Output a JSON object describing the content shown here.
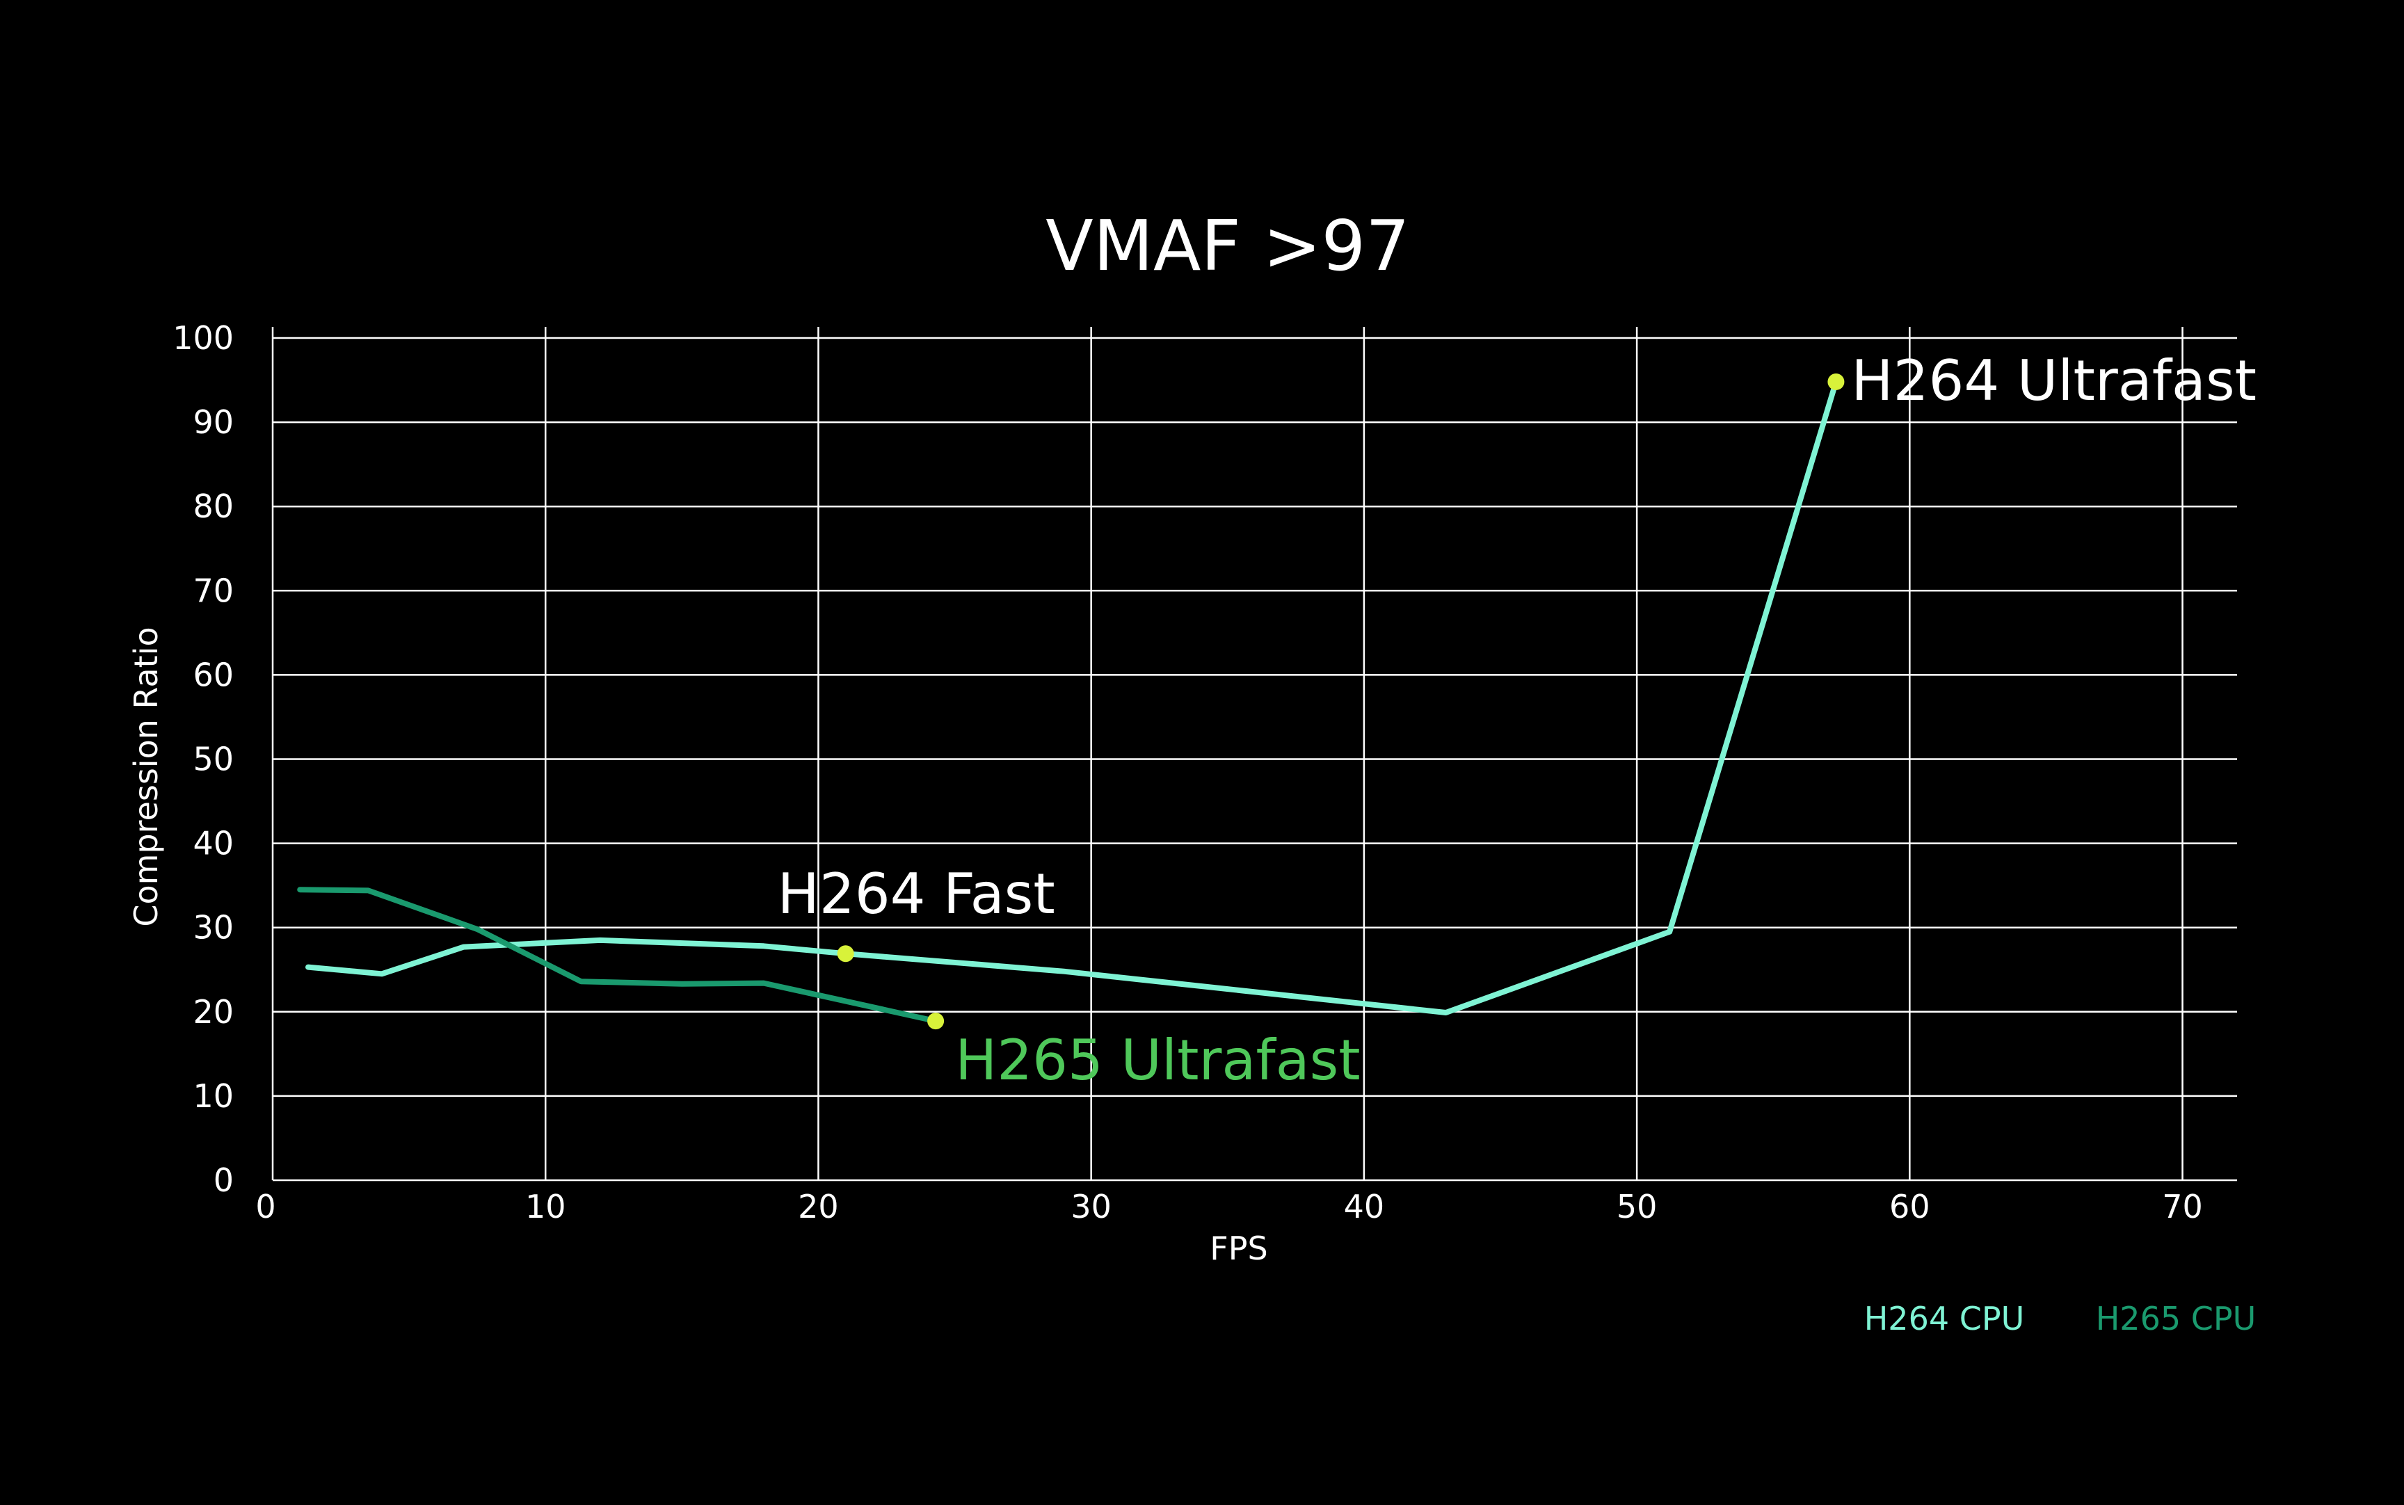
{
  "chart_data": {
    "type": "line",
    "title": "VMAF >97",
    "xlabel": "FPS",
    "ylabel": "Compression Ratio",
    "xlim": [
      0,
      72
    ],
    "ylim": [
      0,
      100
    ],
    "x_ticks": [
      0,
      10,
      20,
      30,
      40,
      50,
      60,
      70
    ],
    "y_ticks": [
      0,
      10,
      20,
      30,
      40,
      50,
      60,
      70,
      80,
      90,
      100
    ],
    "grid": true,
    "legend_position": "bottom-right",
    "series": [
      {
        "name": "H264 CPU",
        "color": "#7ff3d4",
        "x": [
          1.3,
          4,
          7,
          12,
          18,
          21,
          29,
          43,
          51.2,
          57.3
        ],
        "y": [
          25.3,
          24.5,
          27.7,
          28.5,
          27.8,
          26.9,
          24.8,
          19.9,
          29.5,
          94.8
        ]
      },
      {
        "name": "H265 CPU",
        "color": "#1a9a6e",
        "x": [
          1,
          3.5,
          7.5,
          11.3,
          15,
          18,
          24.3
        ],
        "y": [
          34.5,
          34.4,
          29.8,
          23.6,
          23.3,
          23.4,
          18.9
        ]
      }
    ],
    "annotations": [
      {
        "label": "H264 Ultrafast",
        "x": 57.3,
        "y": 94.8,
        "color": "#ffffff",
        "marker_color": "#d8f23a"
      },
      {
        "label": "H264 Fast",
        "x": 21,
        "y": 26.9,
        "color": "#ffffff",
        "marker_color": "#d8f23a"
      },
      {
        "label": "H265 Ultrafast",
        "x": 24.3,
        "y": 18.9,
        "color": "#4fc85a",
        "marker_color": "#d8f23a"
      }
    ]
  }
}
